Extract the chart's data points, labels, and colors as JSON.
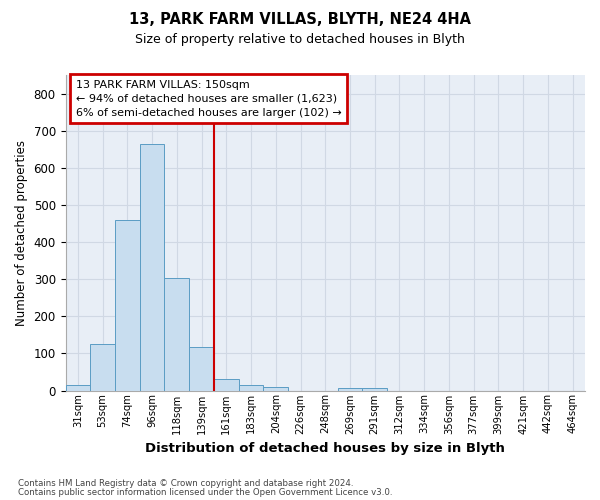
{
  "title1": "13, PARK FARM VILLAS, BLYTH, NE24 4HA",
  "title2": "Size of property relative to detached houses in Blyth",
  "xlabel": "Distribution of detached houses by size in Blyth",
  "ylabel": "Number of detached properties",
  "footnote1": "Contains HM Land Registry data © Crown copyright and database right 2024.",
  "footnote2": "Contains public sector information licensed under the Open Government Licence v3.0.",
  "bin_labels": [
    "31sqm",
    "53sqm",
    "74sqm",
    "96sqm",
    "118sqm",
    "139sqm",
    "161sqm",
    "183sqm",
    "204sqm",
    "226sqm",
    "248sqm",
    "269sqm",
    "291sqm",
    "312sqm",
    "334sqm",
    "356sqm",
    "377sqm",
    "399sqm",
    "421sqm",
    "442sqm",
    "464sqm"
  ],
  "bar_values": [
    16,
    125,
    460,
    665,
    302,
    116,
    32,
    14,
    10,
    0,
    0,
    8,
    8,
    0,
    0,
    0,
    0,
    0,
    0,
    0,
    0
  ],
  "bar_color": "#c8ddef",
  "bar_edge_color": "#5b9cc4",
  "vline_x": 5.5,
  "vline_color": "#cc0000",
  "annotation_text": "13 PARK FARM VILLAS: 150sqm\n← 94% of detached houses are smaller (1,623)\n6% of semi-detached houses are larger (102) →",
  "annotation_box_color": "#cc0000",
  "annotation_text_color": "#000000",
  "ylim": [
    0,
    850
  ],
  "yticks": [
    0,
    100,
    200,
    300,
    400,
    500,
    600,
    700,
    800
  ],
  "grid_color": "#d0d8e4",
  "plot_bg_color": "#e8eef6",
  "fig_bg_color": "#ffffff"
}
